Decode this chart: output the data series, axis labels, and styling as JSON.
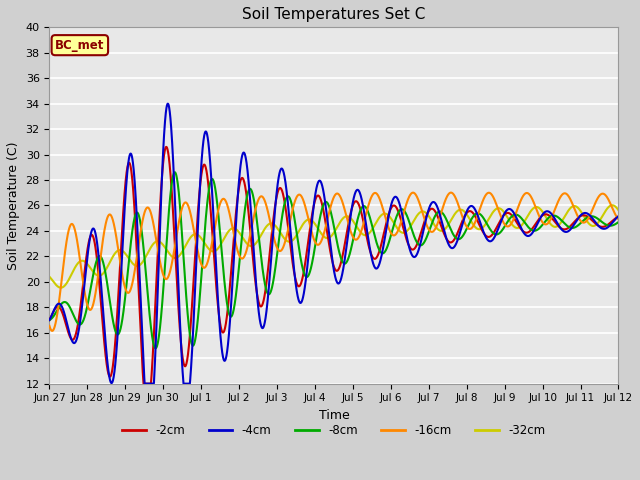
{
  "title": "Soil Temperatures Set C",
  "xlabel": "Time",
  "ylabel": "Soil Temperature (C)",
  "ylim": [
    12,
    40
  ],
  "yticks": [
    12,
    14,
    16,
    18,
    20,
    22,
    24,
    26,
    28,
    30,
    32,
    34,
    36,
    38,
    40
  ],
  "annotation_text": "BC_met",
  "annotation_color": "#8B0000",
  "annotation_bg": "#FFFF99",
  "fig_bg": "#D0D0D0",
  "plot_bg": "#E8E8E8",
  "grid_color": "#FFFFFF",
  "colors": {
    "-2cm": "#CC0000",
    "-4cm": "#0000CC",
    "-8cm": "#00AA00",
    "-16cm": "#FF8800",
    "-32cm": "#CCCC00"
  },
  "line_width": 1.5,
  "tick_labels": [
    "Jun 27",
    "Jun 28",
    "Jun 29",
    "Jun 30",
    "Jul 1",
    "Jul 2",
    "Jul 3",
    "Jul 4",
    "Jul 5",
    "Jul 6",
    "Jul 7",
    "Jul 8",
    "Jul 9",
    "Jul 10",
    "Jul 11",
    "Jul 12"
  ]
}
